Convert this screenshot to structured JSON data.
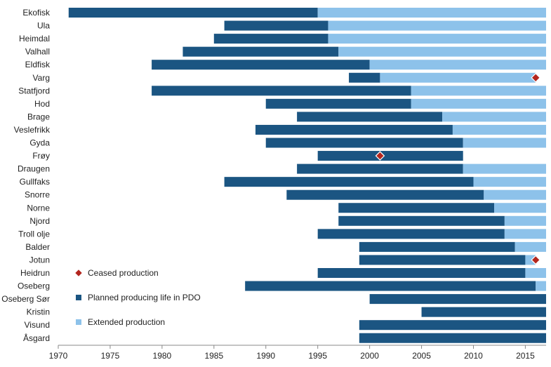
{
  "chart_data": {
    "type": "bar",
    "orientation": "horizontal",
    "stacked": true,
    "title": "",
    "xlabel": "",
    "ylabel": "",
    "xlim": [
      1970,
      2017
    ],
    "x_ticks": [
      1970,
      1975,
      1980,
      1985,
      1990,
      1995,
      2000,
      2005,
      2010,
      2015
    ],
    "grid": false,
    "legend_position": "inside-bottom-left",
    "colors": {
      "planned": "#1b5582",
      "extended": "#8dc2ea",
      "ceased": "#b3261e"
    },
    "legend": [
      {
        "key": "ceased",
        "label": "Ceased production",
        "marker": "diamond"
      },
      {
        "key": "planned",
        "label": "Planned producing life in PDO",
        "marker": "square"
      },
      {
        "key": "extended",
        "label": "Extended production",
        "marker": "square"
      }
    ],
    "fields": [
      {
        "name": "Ekofisk",
        "start": 1971,
        "planned_end": 1995,
        "extended_end": 2017,
        "ceased": null
      },
      {
        "name": "Ula",
        "start": 1986,
        "planned_end": 1996,
        "extended_end": 2017,
        "ceased": null
      },
      {
        "name": "Heimdal",
        "start": 1985,
        "planned_end": 1996,
        "extended_end": 2017,
        "ceased": null
      },
      {
        "name": "Valhall",
        "start": 1982,
        "planned_end": 1997,
        "extended_end": 2017,
        "ceased": null
      },
      {
        "name": "Eldfisk",
        "start": 1979,
        "planned_end": 2000,
        "extended_end": 2017,
        "ceased": null
      },
      {
        "name": "Varg",
        "start": 1998,
        "planned_end": 2001,
        "extended_end": 2016,
        "ceased": 2016
      },
      {
        "name": "Statfjord",
        "start": 1979,
        "planned_end": 2004,
        "extended_end": 2017,
        "ceased": null
      },
      {
        "name": "Hod",
        "start": 1990,
        "planned_end": 2004,
        "extended_end": 2017,
        "ceased": null
      },
      {
        "name": "Brage",
        "start": 1993,
        "planned_end": 2007,
        "extended_end": 2017,
        "ceased": null
      },
      {
        "name": "Veslefrikk",
        "start": 1989,
        "planned_end": 2008,
        "extended_end": 2017,
        "ceased": null
      },
      {
        "name": "Gyda",
        "start": 1990,
        "planned_end": 2009,
        "extended_end": 2017,
        "ceased": null
      },
      {
        "name": "Frøy",
        "start": 1995,
        "planned_end": 2009,
        "extended_end": 2009,
        "ceased": 2001
      },
      {
        "name": "Draugen",
        "start": 1993,
        "planned_end": 2009,
        "extended_end": 2017,
        "ceased": null
      },
      {
        "name": "Gullfaks",
        "start": 1986,
        "planned_end": 2010,
        "extended_end": 2017,
        "ceased": null
      },
      {
        "name": "Snorre",
        "start": 1992,
        "planned_end": 2011,
        "extended_end": 2017,
        "ceased": null
      },
      {
        "name": "Norne",
        "start": 1997,
        "planned_end": 2012,
        "extended_end": 2017,
        "ceased": null
      },
      {
        "name": "Njord",
        "start": 1997,
        "planned_end": 2013,
        "extended_end": 2017,
        "ceased": null
      },
      {
        "name": "Troll olje",
        "start": 1995,
        "planned_end": 2013,
        "extended_end": 2017,
        "ceased": null
      },
      {
        "name": "Balder",
        "start": 1999,
        "planned_end": 2014,
        "extended_end": 2017,
        "ceased": null
      },
      {
        "name": "Jotun",
        "start": 1999,
        "planned_end": 2015,
        "extended_end": 2016,
        "ceased": 2016
      },
      {
        "name": "Heidrun",
        "start": 1995,
        "planned_end": 2015,
        "extended_end": 2017,
        "ceased": null
      },
      {
        "name": "Oseberg",
        "start": 1988,
        "planned_end": 2016,
        "extended_end": 2017,
        "ceased": null
      },
      {
        "name": "Oseberg Sør",
        "start": 2000,
        "planned_end": 2017,
        "extended_end": 2017,
        "ceased": null
      },
      {
        "name": "Kristin",
        "start": 2005,
        "planned_end": 2017,
        "extended_end": 2017,
        "ceased": null
      },
      {
        "name": "Visund",
        "start": 1999,
        "planned_end": 2017,
        "extended_end": 2017,
        "ceased": null
      },
      {
        "name": "Åsgard",
        "start": 1999,
        "planned_end": 2017,
        "extended_end": 2017,
        "ceased": null
      }
    ]
  }
}
